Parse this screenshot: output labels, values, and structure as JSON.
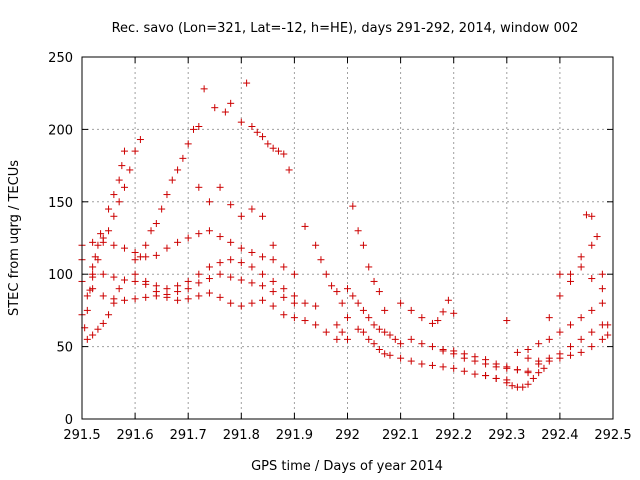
{
  "chart_data": {
    "type": "scatter",
    "title": "Rec. savo (Lon=321, Lat=-12, h=HE), days 291-292, 2014, window 002",
    "xlabel": "GPS time / Days of year 2014",
    "ylabel": "STEC from uqrg / TECUs",
    "xlim": [
      291.5,
      292.5
    ],
    "ylim": [
      0,
      250
    ],
    "xticks": [
      291.5,
      291.6,
      291.7,
      291.8,
      291.9,
      292,
      292.1,
      292.2,
      292.3,
      292.4,
      292.5
    ],
    "xtick_labels": [
      "291.5",
      "291.6",
      "291.7",
      "291.8",
      "291.9",
      "292",
      "292.1",
      "292.2",
      "292.3",
      "292.4",
      "292.5"
    ],
    "yticks": [
      0,
      50,
      100,
      150,
      200,
      250
    ],
    "ytick_labels": [
      "0",
      "50",
      "100",
      "150",
      "200",
      "250"
    ],
    "grid": true,
    "marker": "plus",
    "color": "#cc0000",
    "series": [
      {
        "points": [
          [
            291.505,
            63
          ],
          [
            291.51,
            75
          ],
          [
            291.515,
            89
          ],
          [
            291.52,
            100
          ],
          [
            291.525,
            112
          ],
          [
            291.53,
            120
          ],
          [
            291.535,
            128
          ],
          [
            291.51,
            55
          ],
          [
            291.52,
            58
          ],
          [
            291.53,
            62
          ],
          [
            291.54,
            66
          ],
          [
            291.55,
            72
          ],
          [
            291.56,
            80
          ],
          [
            291.57,
            90
          ],
          [
            291.5,
            72
          ],
          [
            291.51,
            85
          ],
          [
            291.52,
            98
          ],
          [
            291.53,
            110
          ],
          [
            291.54,
            122
          ],
          [
            291.55,
            130
          ],
          [
            291.56,
            140
          ],
          [
            291.57,
            150
          ],
          [
            291.58,
            160
          ],
          [
            291.59,
            172
          ],
          [
            291.6,
            185
          ],
          [
            291.61,
            193
          ],
          [
            291.55,
            145
          ],
          [
            291.56,
            155
          ],
          [
            291.57,
            165
          ],
          [
            291.575,
            175
          ],
          [
            291.58,
            185
          ],
          [
            291.6,
            110
          ],
          [
            291.61,
            112
          ],
          [
            291.62,
            120
          ],
          [
            291.63,
            130
          ],
          [
            291.64,
            135
          ],
          [
            291.65,
            145
          ],
          [
            291.66,
            155
          ],
          [
            291.67,
            165
          ],
          [
            291.68,
            172
          ],
          [
            291.69,
            180
          ],
          [
            291.7,
            190
          ],
          [
            291.71,
            200
          ],
          [
            291.72,
            202
          ],
          [
            291.73,
            228
          ],
          [
            291.75,
            215
          ],
          [
            291.77,
            212
          ],
          [
            291.78,
            218
          ],
          [
            291.8,
            205
          ],
          [
            291.81,
            232
          ],
          [
            291.82,
            202
          ],
          [
            291.83,
            198
          ],
          [
            291.84,
            195
          ],
          [
            291.85,
            190
          ],
          [
            291.86,
            187
          ],
          [
            291.87,
            185
          ],
          [
            291.88,
            183
          ],
          [
            291.89,
            172
          ],
          [
            291.72,
            160
          ],
          [
            291.74,
            150
          ],
          [
            291.76,
            160
          ],
          [
            291.78,
            148
          ],
          [
            291.8,
            140
          ],
          [
            291.82,
            145
          ],
          [
            291.84,
            140
          ],
          [
            291.86,
            120
          ],
          [
            291.5,
            110
          ],
          [
            291.52,
            105
          ],
          [
            291.54,
            100
          ],
          [
            291.56,
            98
          ],
          [
            291.58,
            96
          ],
          [
            291.6,
            95
          ],
          [
            291.62,
            93
          ],
          [
            291.64,
            92
          ],
          [
            291.66,
            90
          ],
          [
            291.68,
            92
          ],
          [
            291.7,
            95
          ],
          [
            291.72,
            100
          ],
          [
            291.74,
            105
          ],
          [
            291.76,
            108
          ],
          [
            291.78,
            110
          ],
          [
            291.8,
            108
          ],
          [
            291.82,
            105
          ],
          [
            291.84,
            100
          ],
          [
            291.86,
            95
          ],
          [
            291.88,
            90
          ],
          [
            291.9,
            85
          ],
          [
            291.92,
            80
          ],
          [
            291.94,
            78
          ],
          [
            291.5,
            95
          ],
          [
            291.52,
            90
          ],
          [
            291.54,
            85
          ],
          [
            291.56,
            83
          ],
          [
            291.58,
            82
          ],
          [
            291.6,
            83
          ],
          [
            291.62,
            84
          ],
          [
            291.64,
            85
          ],
          [
            291.66,
            86
          ],
          [
            291.68,
            88
          ],
          [
            291.7,
            90
          ],
          [
            291.72,
            94
          ],
          [
            291.74,
            97
          ],
          [
            291.76,
            100
          ],
          [
            291.78,
            98
          ],
          [
            291.8,
            96
          ],
          [
            291.82,
            94
          ],
          [
            291.84,
            92
          ],
          [
            291.86,
            88
          ],
          [
            291.88,
            84
          ],
          [
            291.9,
            80
          ],
          [
            291.5,
            120
          ],
          [
            291.52,
            122
          ],
          [
            291.54,
            125
          ],
          [
            291.56,
            120
          ],
          [
            291.58,
            118
          ],
          [
            291.6,
            115
          ],
          [
            291.62,
            112
          ],
          [
            291.64,
            113
          ],
          [
            291.66,
            118
          ],
          [
            291.68,
            122
          ],
          [
            291.7,
            125
          ],
          [
            291.72,
            128
          ],
          [
            291.74,
            130
          ],
          [
            291.76,
            126
          ],
          [
            291.78,
            122
          ],
          [
            291.8,
            118
          ],
          [
            291.82,
            115
          ],
          [
            291.84,
            112
          ],
          [
            291.86,
            110
          ],
          [
            291.88,
            105
          ],
          [
            291.9,
            100
          ],
          [
            291.6,
            100
          ],
          [
            291.62,
            95
          ],
          [
            291.64,
            88
          ],
          [
            291.66,
            84
          ],
          [
            291.68,
            82
          ],
          [
            291.7,
            83
          ],
          [
            291.72,
            85
          ],
          [
            291.74,
            87
          ],
          [
            291.76,
            84
          ],
          [
            291.78,
            80
          ],
          [
            291.8,
            78
          ],
          [
            291.82,
            80
          ],
          [
            291.84,
            82
          ],
          [
            291.86,
            78
          ],
          [
            291.88,
            72
          ],
          [
            291.9,
            70
          ],
          [
            291.92,
            68
          ],
          [
            291.94,
            65
          ],
          [
            291.96,
            60
          ],
          [
            291.98,
            55
          ],
          [
            291.92,
            133
          ],
          [
            291.94,
            120
          ],
          [
            291.95,
            110
          ],
          [
            291.96,
            100
          ],
          [
            291.97,
            92
          ],
          [
            291.98,
            88
          ],
          [
            291.99,
            80
          ],
          [
            291.98,
            65
          ],
          [
            291.99,
            60
          ],
          [
            292.0,
            55
          ],
          [
            292.0,
            70
          ],
          [
            292.01,
            147
          ],
          [
            292.02,
            130
          ],
          [
            292.03,
            120
          ],
          [
            292.04,
            105
          ],
          [
            292.05,
            95
          ],
          [
            292.06,
            88
          ],
          [
            292.07,
            75
          ],
          [
            292.0,
            90
          ],
          [
            292.01,
            85
          ],
          [
            292.02,
            80
          ],
          [
            292.03,
            75
          ],
          [
            292.04,
            70
          ],
          [
            292.05,
            65
          ],
          [
            292.06,
            62
          ],
          [
            292.07,
            60
          ],
          [
            292.08,
            58
          ],
          [
            292.09,
            55
          ],
          [
            292.1,
            52
          ],
          [
            292.02,
            62
          ],
          [
            292.03,
            60
          ],
          [
            292.04,
            55
          ],
          [
            292.05,
            52
          ],
          [
            292.06,
            48
          ],
          [
            292.07,
            45
          ],
          [
            292.08,
            44
          ],
          [
            292.1,
            80
          ],
          [
            292.12,
            75
          ],
          [
            292.14,
            70
          ],
          [
            292.16,
            66
          ],
          [
            292.17,
            68
          ],
          [
            292.18,
            74
          ],
          [
            292.19,
            82
          ],
          [
            292.2,
            73
          ],
          [
            292.12,
            55
          ],
          [
            292.14,
            52
          ],
          [
            292.16,
            50
          ],
          [
            292.18,
            47
          ],
          [
            292.2,
            45
          ],
          [
            292.22,
            42
          ],
          [
            292.24,
            40
          ],
          [
            292.26,
            38
          ],
          [
            292.28,
            36
          ],
          [
            292.3,
            35
          ],
          [
            292.32,
            34
          ],
          [
            292.34,
            33
          ],
          [
            292.1,
            42
          ],
          [
            292.12,
            40
          ],
          [
            292.14,
            38
          ],
          [
            292.16,
            37
          ],
          [
            292.18,
            36
          ],
          [
            292.2,
            35
          ],
          [
            292.22,
            33
          ],
          [
            292.24,
            31
          ],
          [
            292.26,
            30
          ],
          [
            292.28,
            28
          ],
          [
            292.3,
            27
          ],
          [
            292.18,
            48
          ],
          [
            292.2,
            47
          ],
          [
            292.22,
            45
          ],
          [
            292.24,
            43
          ],
          [
            292.26,
            41
          ],
          [
            292.28,
            38
          ],
          [
            292.3,
            36
          ],
          [
            292.32,
            34
          ],
          [
            292.34,
            32
          ],
          [
            292.26,
            30
          ],
          [
            292.28,
            28
          ],
          [
            292.3,
            25
          ],
          [
            292.31,
            23
          ],
          [
            292.32,
            22
          ],
          [
            292.33,
            22
          ],
          [
            292.34,
            24
          ],
          [
            292.35,
            28
          ],
          [
            292.36,
            32
          ],
          [
            292.37,
            35
          ],
          [
            292.3,
            68
          ],
          [
            292.32,
            46
          ],
          [
            292.34,
            42
          ],
          [
            292.36,
            40
          ],
          [
            292.38,
            42
          ],
          [
            292.4,
            45
          ],
          [
            292.42,
            50
          ],
          [
            292.44,
            55
          ],
          [
            292.46,
            60
          ],
          [
            292.48,
            65
          ],
          [
            292.34,
            48
          ],
          [
            292.36,
            52
          ],
          [
            292.38,
            55
          ],
          [
            292.4,
            60
          ],
          [
            292.42,
            65
          ],
          [
            292.44,
            70
          ],
          [
            292.46,
            75
          ],
          [
            292.48,
            80
          ],
          [
            292.36,
            38
          ],
          [
            292.38,
            40
          ],
          [
            292.4,
            42
          ],
          [
            292.42,
            44
          ],
          [
            292.44,
            46
          ],
          [
            292.46,
            50
          ],
          [
            292.48,
            55
          ],
          [
            292.38,
            70
          ],
          [
            292.4,
            85
          ],
          [
            292.42,
            100
          ],
          [
            292.44,
            112
          ],
          [
            292.46,
            120
          ],
          [
            292.47,
            126
          ],
          [
            292.45,
            141
          ],
          [
            292.46,
            140
          ],
          [
            292.48,
            100
          ],
          [
            292.4,
            100
          ],
          [
            292.42,
            95
          ],
          [
            292.44,
            105
          ],
          [
            292.46,
            97
          ],
          [
            292.48,
            90
          ],
          [
            292.49,
            65
          ],
          [
            292.49,
            58
          ]
        ]
      }
    ]
  }
}
